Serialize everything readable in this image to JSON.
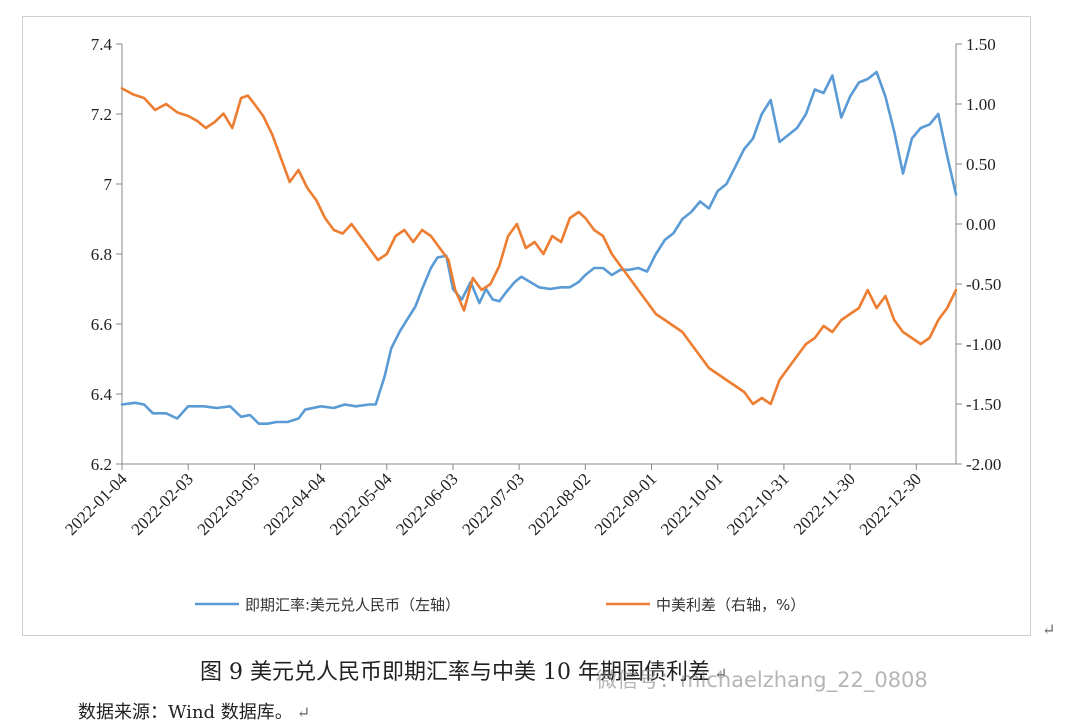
{
  "chart_data": {
    "type": "line",
    "x_tick_labels": [
      "2022-01-04",
      "2022-02-03",
      "2022-03-05",
      "2022-04-04",
      "2022-05-04",
      "2022-06-03",
      "2022-07-03",
      "2022-08-02",
      "2022-09-01",
      "2022-10-01",
      "2022-10-31",
      "2022-11-30",
      "2022-12-30"
    ],
    "x_range": [
      "2022-01-04",
      "2023-01-17"
    ],
    "y_left_ticks": [
      "6.2",
      "6.4",
      "6.6",
      "6.8",
      "7",
      "7.2",
      "7.4"
    ],
    "y_left_range": [
      6.2,
      7.4
    ],
    "y_right_ticks": [
      "-2.00",
      "-1.50",
      "-1.00",
      "-0.50",
      "0.00",
      "0.50",
      "1.00",
      "1.50"
    ],
    "y_right_range": [
      -2.0,
      1.5
    ],
    "grid": false,
    "legend_position": "bottom",
    "series": [
      {
        "name": "即期汇率:美元兑人民币（左轴）",
        "axis": "left",
        "color": "#5b9bd5",
        "points": [
          [
            "2022-01-04",
            6.37
          ],
          [
            "2022-01-10",
            6.375
          ],
          [
            "2022-01-14",
            6.37
          ],
          [
            "2022-01-18",
            6.345
          ],
          [
            "2022-01-24",
            6.345
          ],
          [
            "2022-01-29",
            6.33
          ],
          [
            "2022-02-03",
            6.365
          ],
          [
            "2022-02-10",
            6.365
          ],
          [
            "2022-02-16",
            6.36
          ],
          [
            "2022-02-22",
            6.365
          ],
          [
            "2022-02-27",
            6.335
          ],
          [
            "2022-03-03",
            6.34
          ],
          [
            "2022-03-07",
            6.315
          ],
          [
            "2022-03-11",
            6.315
          ],
          [
            "2022-03-15",
            6.32
          ],
          [
            "2022-03-20",
            6.32
          ],
          [
            "2022-03-25",
            6.33
          ],
          [
            "2022-03-28",
            6.355
          ],
          [
            "2022-04-04",
            6.365
          ],
          [
            "2022-04-10",
            6.36
          ],
          [
            "2022-04-15",
            6.37
          ],
          [
            "2022-04-20",
            6.365
          ],
          [
            "2022-04-26",
            6.37
          ],
          [
            "2022-04-29",
            6.37
          ],
          [
            "2022-05-03",
            6.45
          ],
          [
            "2022-05-06",
            6.53
          ],
          [
            "2022-05-10",
            6.58
          ],
          [
            "2022-05-13",
            6.61
          ],
          [
            "2022-05-17",
            6.65
          ],
          [
            "2022-05-20",
            6.7
          ],
          [
            "2022-05-24",
            6.76
          ],
          [
            "2022-05-27",
            6.79
          ],
          [
            "2022-05-31",
            6.795
          ],
          [
            "2022-06-03",
            6.7
          ],
          [
            "2022-06-07",
            6.67
          ],
          [
            "2022-06-11",
            6.72
          ],
          [
            "2022-06-15",
            6.66
          ],
          [
            "2022-06-18",
            6.7
          ],
          [
            "2022-06-21",
            6.67
          ],
          [
            "2022-06-24",
            6.665
          ],
          [
            "2022-06-27",
            6.69
          ],
          [
            "2022-07-01",
            6.72
          ],
          [
            "2022-07-04",
            6.735
          ],
          [
            "2022-07-08",
            6.72
          ],
          [
            "2022-07-12",
            6.705
          ],
          [
            "2022-07-17",
            6.7
          ],
          [
            "2022-07-22",
            6.705
          ],
          [
            "2022-07-26",
            6.705
          ],
          [
            "2022-07-30",
            6.72
          ],
          [
            "2022-08-02",
            6.74
          ],
          [
            "2022-08-06",
            6.76
          ],
          [
            "2022-08-10",
            6.76
          ],
          [
            "2022-08-14",
            6.74
          ],
          [
            "2022-08-18",
            6.755
          ],
          [
            "2022-08-22",
            6.755
          ],
          [
            "2022-08-26",
            6.76
          ],
          [
            "2022-08-30",
            6.75
          ],
          [
            "2022-09-03",
            6.8
          ],
          [
            "2022-09-07",
            6.84
          ],
          [
            "2022-09-11",
            6.86
          ],
          [
            "2022-09-15",
            6.9
          ],
          [
            "2022-09-19",
            6.92
          ],
          [
            "2022-09-23",
            6.95
          ],
          [
            "2022-09-27",
            6.93
          ],
          [
            "2022-10-01",
            6.98
          ],
          [
            "2022-10-05",
            7.0
          ],
          [
            "2022-10-09",
            7.05
          ],
          [
            "2022-10-13",
            7.1
          ],
          [
            "2022-10-17",
            7.13
          ],
          [
            "2022-10-21",
            7.2
          ],
          [
            "2022-10-25",
            7.24
          ],
          [
            "2022-10-29",
            7.12
          ],
          [
            "2022-11-02",
            7.14
          ],
          [
            "2022-11-06",
            7.16
          ],
          [
            "2022-11-10",
            7.2
          ],
          [
            "2022-11-14",
            7.27
          ],
          [
            "2022-11-18",
            7.26
          ],
          [
            "2022-11-22",
            7.31
          ],
          [
            "2022-11-26",
            7.19
          ],
          [
            "2022-11-30",
            7.25
          ],
          [
            "2022-12-04",
            7.29
          ],
          [
            "2022-12-08",
            7.3
          ],
          [
            "2022-12-12",
            7.32
          ],
          [
            "2022-12-16",
            7.25
          ],
          [
            "2022-12-20",
            7.15
          ],
          [
            "2022-12-24",
            7.03
          ],
          [
            "2022-12-28",
            7.13
          ],
          [
            "2023-01-01",
            7.16
          ],
          [
            "2023-01-05",
            7.17
          ],
          [
            "2023-01-09",
            7.2
          ],
          [
            "2023-01-13",
            7.08
          ],
          [
            "2023-01-17",
            6.97
          ]
        ]
      },
      {
        "name": "中美利差（右轴，%）",
        "axis": "right",
        "color": "#ed7d31",
        "points": [
          [
            "2022-01-04",
            1.13
          ],
          [
            "2022-01-09",
            1.08
          ],
          [
            "2022-01-14",
            1.05
          ],
          [
            "2022-01-19",
            0.95
          ],
          [
            "2022-01-24",
            1.0
          ],
          [
            "2022-01-29",
            0.93
          ],
          [
            "2022-02-03",
            0.9
          ],
          [
            "2022-02-07",
            0.86
          ],
          [
            "2022-02-11",
            0.8
          ],
          [
            "2022-02-15",
            0.85
          ],
          [
            "2022-02-19",
            0.92
          ],
          [
            "2022-02-23",
            0.8
          ],
          [
            "2022-02-27",
            1.05
          ],
          [
            "2022-03-02",
            1.07
          ],
          [
            "2022-03-05",
            1.0
          ],
          [
            "2022-03-09",
            0.9
          ],
          [
            "2022-03-13",
            0.75
          ],
          [
            "2022-03-17",
            0.55
          ],
          [
            "2022-03-21",
            0.35
          ],
          [
            "2022-03-25",
            0.45
          ],
          [
            "2022-03-29",
            0.3
          ],
          [
            "2022-04-02",
            0.2
          ],
          [
            "2022-04-06",
            0.05
          ],
          [
            "2022-04-10",
            -0.05
          ],
          [
            "2022-04-14",
            -0.08
          ],
          [
            "2022-04-18",
            0.0
          ],
          [
            "2022-04-22",
            -0.1
          ],
          [
            "2022-04-26",
            -0.2
          ],
          [
            "2022-04-30",
            -0.3
          ],
          [
            "2022-05-04",
            -0.25
          ],
          [
            "2022-05-08",
            -0.1
          ],
          [
            "2022-05-12",
            -0.05
          ],
          [
            "2022-05-16",
            -0.15
          ],
          [
            "2022-05-20",
            -0.05
          ],
          [
            "2022-05-24",
            -0.1
          ],
          [
            "2022-05-28",
            -0.2
          ],
          [
            "2022-06-01",
            -0.3
          ],
          [
            "2022-06-04",
            -0.55
          ],
          [
            "2022-06-08",
            -0.72
          ],
          [
            "2022-06-12",
            -0.45
          ],
          [
            "2022-06-16",
            -0.55
          ],
          [
            "2022-06-20",
            -0.5
          ],
          [
            "2022-06-24",
            -0.35
          ],
          [
            "2022-06-28",
            -0.1
          ],
          [
            "2022-07-02",
            0.0
          ],
          [
            "2022-07-06",
            -0.2
          ],
          [
            "2022-07-10",
            -0.15
          ],
          [
            "2022-07-14",
            -0.25
          ],
          [
            "2022-07-18",
            -0.1
          ],
          [
            "2022-07-22",
            -0.15
          ],
          [
            "2022-07-26",
            0.05
          ],
          [
            "2022-07-30",
            0.1
          ],
          [
            "2022-08-02",
            0.05
          ],
          [
            "2022-08-06",
            -0.05
          ],
          [
            "2022-08-10",
            -0.1
          ],
          [
            "2022-08-14",
            -0.25
          ],
          [
            "2022-08-18",
            -0.35
          ],
          [
            "2022-08-22",
            -0.45
          ],
          [
            "2022-08-26",
            -0.55
          ],
          [
            "2022-08-30",
            -0.65
          ],
          [
            "2022-09-03",
            -0.75
          ],
          [
            "2022-09-07",
            -0.8
          ],
          [
            "2022-09-11",
            -0.85
          ],
          [
            "2022-09-15",
            -0.9
          ],
          [
            "2022-09-19",
            -1.0
          ],
          [
            "2022-09-23",
            -1.1
          ],
          [
            "2022-09-27",
            -1.2
          ],
          [
            "2022-10-01",
            -1.25
          ],
          [
            "2022-10-05",
            -1.3
          ],
          [
            "2022-10-09",
            -1.35
          ],
          [
            "2022-10-13",
            -1.4
          ],
          [
            "2022-10-17",
            -1.5
          ],
          [
            "2022-10-21",
            -1.45
          ],
          [
            "2022-10-25",
            -1.5
          ],
          [
            "2022-10-29",
            -1.3
          ],
          [
            "2022-11-02",
            -1.2
          ],
          [
            "2022-11-06",
            -1.1
          ],
          [
            "2022-11-10",
            -1.0
          ],
          [
            "2022-11-14",
            -0.95
          ],
          [
            "2022-11-18",
            -0.85
          ],
          [
            "2022-11-22",
            -0.9
          ],
          [
            "2022-11-26",
            -0.8
          ],
          [
            "2022-11-30",
            -0.75
          ],
          [
            "2022-12-04",
            -0.7
          ],
          [
            "2022-12-08",
            -0.55
          ],
          [
            "2022-12-12",
            -0.7
          ],
          [
            "2022-12-16",
            -0.6
          ],
          [
            "2022-12-20",
            -0.8
          ],
          [
            "2022-12-24",
            -0.9
          ],
          [
            "2022-12-28",
            -0.95
          ],
          [
            "2023-01-01",
            -1.0
          ],
          [
            "2023-01-05",
            -0.95
          ],
          [
            "2023-01-09",
            -0.8
          ],
          [
            "2023-01-13",
            -0.7
          ],
          [
            "2023-01-17",
            -0.55
          ]
        ]
      }
    ]
  },
  "caption": "图 9  美元兑人民币即期汇率与中美 10 年期国债利差",
  "source": "数据来源：Wind 数据库。",
  "watermark": "微信号：michaelzhang_22_0808",
  "return_mark": "↵"
}
